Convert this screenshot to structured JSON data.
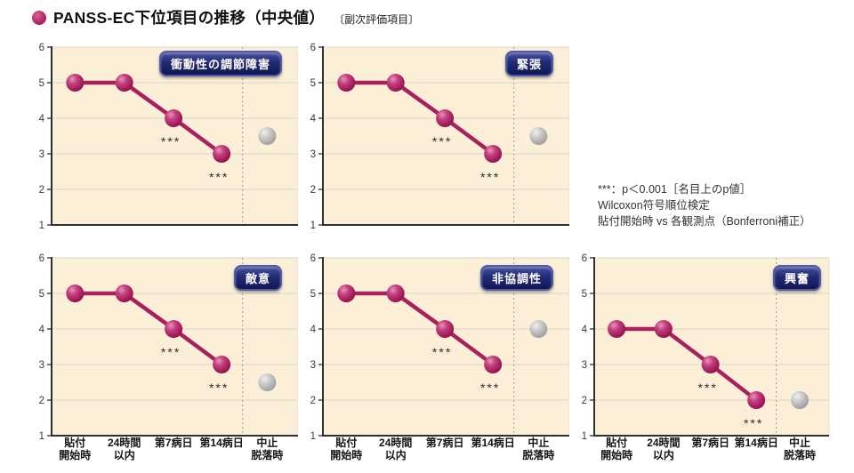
{
  "page": {
    "title": "PANSS-EC下位項目の推移（中央値）",
    "subtitle": "〔副次評価項目〕"
  },
  "annotation": {
    "lines": [
      "***：p＜0.001［名目上のp値］",
      "Wilcoxon符号順位検定",
      "貼付開始時 vs 各観測点（Bonferroni補正）"
    ]
  },
  "colors": {
    "series": "#a9205f",
    "dropout": "#b3b3b3",
    "plot_bg": "#fcefd7",
    "grid_line": "#dcd6cb",
    "axis": "#2f2f2d",
    "badge_bg": "#1d2368",
    "accent_bullet": "#a9205f"
  },
  "chart_data": [
    {
      "type": "line",
      "title": "衝動性の調節障害",
      "categories": [
        "貼付開始時",
        "24時間以内",
        "第7病日",
        "第14病日",
        "中止脱落時"
      ],
      "category_lines": [
        [
          "貼付",
          "開始時"
        ],
        [
          "24時間",
          "以内"
        ],
        [
          "第7病日"
        ],
        [
          "第14病日"
        ],
        [
          "中止",
          "脱落時"
        ]
      ],
      "series": [
        {
          "name": "中央値",
          "values": [
            5,
            5,
            4,
            3,
            null
          ]
        },
        {
          "name": "中止・脱落時",
          "values": [
            null,
            null,
            null,
            null,
            3.5
          ]
        }
      ],
      "sig_labels": [
        null,
        null,
        "***",
        "***",
        null
      ],
      "ylim": [
        1,
        6
      ],
      "yticks": [
        1,
        2,
        3,
        4,
        5,
        6
      ],
      "grid": true,
      "legend": false,
      "show_x_labels": false
    },
    {
      "type": "line",
      "title": "緊張",
      "categories": [
        "貼付開始時",
        "24時間以内",
        "第7病日",
        "第14病日",
        "中止脱落時"
      ],
      "category_lines": [
        [
          "貼付",
          "開始時"
        ],
        [
          "24時間",
          "以内"
        ],
        [
          "第7病日"
        ],
        [
          "第14病日"
        ],
        [
          "中止",
          "脱落時"
        ]
      ],
      "series": [
        {
          "name": "中央値",
          "values": [
            5,
            5,
            4,
            3,
            null
          ]
        },
        {
          "name": "中止・脱落時",
          "values": [
            null,
            null,
            null,
            null,
            3.5
          ]
        }
      ],
      "sig_labels": [
        null,
        null,
        "***",
        "***",
        null
      ],
      "ylim": [
        1,
        6
      ],
      "yticks": [
        1,
        2,
        3,
        4,
        5,
        6
      ],
      "grid": true,
      "legend": false,
      "show_x_labels": false
    },
    {
      "type": "line",
      "title": "敵意",
      "categories": [
        "貼付開始時",
        "24時間以内",
        "第7病日",
        "第14病日",
        "中止脱落時"
      ],
      "category_lines": [
        [
          "貼付",
          "開始時"
        ],
        [
          "24時間",
          "以内"
        ],
        [
          "第7病日"
        ],
        [
          "第14病日"
        ],
        [
          "中止",
          "脱落時"
        ]
      ],
      "series": [
        {
          "name": "中央値",
          "values": [
            5,
            5,
            4,
            3,
            null
          ]
        },
        {
          "name": "中止・脱落時",
          "values": [
            null,
            null,
            null,
            null,
            2.5
          ]
        }
      ],
      "sig_labels": [
        null,
        null,
        "***",
        "***",
        null
      ],
      "ylim": [
        1,
        6
      ],
      "yticks": [
        1,
        2,
        3,
        4,
        5,
        6
      ],
      "grid": true,
      "legend": false,
      "show_x_labels": true
    },
    {
      "type": "line",
      "title": "非協調性",
      "categories": [
        "貼付開始時",
        "24時間以内",
        "第7病日",
        "第14病日",
        "中止脱落時"
      ],
      "category_lines": [
        [
          "貼付",
          "開始時"
        ],
        [
          "24時間",
          "以内"
        ],
        [
          "第7病日"
        ],
        [
          "第14病日"
        ],
        [
          "中止",
          "脱落時"
        ]
      ],
      "series": [
        {
          "name": "中央値",
          "values": [
            5,
            5,
            4,
            3,
            null
          ]
        },
        {
          "name": "中止・脱落時",
          "values": [
            null,
            null,
            null,
            null,
            4
          ]
        }
      ],
      "sig_labels": [
        null,
        null,
        "***",
        "***",
        null
      ],
      "ylim": [
        1,
        6
      ],
      "yticks": [
        1,
        2,
        3,
        4,
        5,
        6
      ],
      "grid": true,
      "legend": false,
      "show_x_labels": true
    },
    {
      "type": "line",
      "title": "興奮",
      "categories": [
        "貼付開始時",
        "24時間以内",
        "第7病日",
        "第14病日",
        "中止脱落時"
      ],
      "category_lines": [
        [
          "貼付",
          "開始時"
        ],
        [
          "24時間",
          "以内"
        ],
        [
          "第7病日"
        ],
        [
          "第14病日"
        ],
        [
          "中止",
          "脱落時"
        ]
      ],
      "series": [
        {
          "name": "中央値",
          "values": [
            4,
            4,
            3,
            2,
            null
          ]
        },
        {
          "name": "中止・脱落時",
          "values": [
            null,
            null,
            null,
            null,
            2
          ]
        }
      ],
      "sig_labels": [
        null,
        null,
        "***",
        "***",
        null
      ],
      "ylim": [
        1,
        6
      ],
      "yticks": [
        1,
        2,
        3,
        4,
        5,
        6
      ],
      "grid": true,
      "legend": false,
      "show_x_labels": true
    }
  ]
}
